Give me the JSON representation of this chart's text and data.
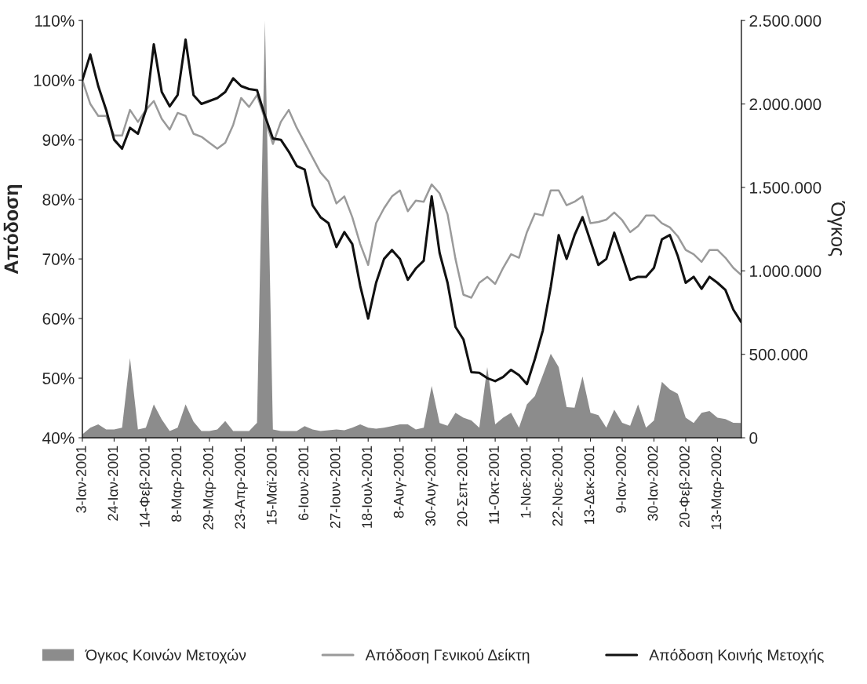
{
  "chart_data": {
    "type": "line",
    "ylabel": "Απόδοση",
    "y2label": "Όγκος",
    "categories": [
      "3-Ιαν-2001",
      null,
      null,
      null,
      "24-Ιαν-2001",
      null,
      null,
      null,
      "14-Φεβ-2001",
      null,
      null,
      null,
      "8-Μαρ-2001",
      null,
      null,
      null,
      "29-Μαρ-2001",
      null,
      null,
      null,
      "23-Απρ-2001",
      null,
      null,
      null,
      "15-Μαϊ-2001",
      null,
      null,
      null,
      "6-Ιουν-2001",
      null,
      null,
      null,
      "27-Ιουν-2001",
      null,
      null,
      null,
      "18-Ιουλ-2001",
      null,
      null,
      null,
      "8-Αυγ-2001",
      null,
      null,
      null,
      "30-Αυγ-2001",
      null,
      null,
      null,
      "20-Σεπ-2001",
      null,
      null,
      null,
      "11-Οκτ-2001",
      null,
      null,
      null,
      "1-Νοε-2001",
      null,
      null,
      null,
      "22-Νοε-2001",
      null,
      null,
      null,
      "13-Δεκ-2001",
      null,
      null,
      null,
      "9-Ιαν-2002",
      null,
      null,
      null,
      "30-Ιαν-2002",
      null,
      null,
      null,
      "20-Φεβ-2002",
      null,
      null,
      null,
      "13-Μαρ-2002",
      null,
      null,
      null
    ],
    "series": [
      {
        "name": "Όγκος Κοινών Μετοχών",
        "type": "area",
        "axis": "y2",
        "color": "#8c8c8c",
        "values": [
          20000,
          60000,
          80000,
          50000,
          50000,
          60000,
          477000,
          50000,
          60000,
          200000,
          110000,
          40000,
          60000,
          200000,
          97000,
          40000,
          40000,
          50000,
          100000,
          40000,
          40000,
          40000,
          90000,
          2500000,
          50000,
          40000,
          40000,
          40000,
          70000,
          50000,
          40000,
          45000,
          50000,
          45000,
          60000,
          80000,
          60000,
          55000,
          60000,
          70000,
          80000,
          80000,
          50000,
          60000,
          311000,
          88000,
          72000,
          150000,
          120000,
          104000,
          60000,
          423000,
          80000,
          120000,
          150000,
          60000,
          200000,
          250000,
          375000,
          503000,
          423000,
          184000,
          180000,
          367000,
          150000,
          136000,
          60000,
          168000,
          90000,
          72000,
          200000,
          60000,
          104000,
          335000,
          290000,
          264000,
          120000,
          88000,
          150000,
          160000,
          120000,
          112000,
          90000,
          88000
        ]
      },
      {
        "name": "Απόδοση Γενικού Δείκτη",
        "color": "#9a9a9a",
        "values": [
          100,
          96,
          94,
          94,
          90.7,
          90.7,
          95,
          93,
          95,
          96.5,
          93.5,
          91.7,
          94.5,
          94,
          91,
          90.5,
          89.5,
          88.5,
          89.5,
          92.5,
          97,
          95.5,
          97.5,
          93.5,
          89.3,
          93,
          95,
          92,
          89.5,
          87,
          84.5,
          83,
          79.3,
          80.5,
          77,
          72.5,
          69,
          76,
          78.5,
          80.5,
          81.5,
          78,
          79.8,
          79.6,
          82.5,
          81,
          77.5,
          70,
          64,
          63.5,
          66,
          67,
          65.8,
          68.5,
          70.8,
          70.2,
          74.5,
          77.6,
          77.3,
          81.5,
          81.5,
          79,
          79.6,
          80.5,
          76,
          76.2,
          76.6,
          77.8,
          76.5,
          74.5,
          75.5,
          77.3,
          77.3,
          76,
          75.3,
          73.8,
          71.5,
          70.8,
          69.5,
          71.5,
          71.5,
          70.2,
          68.5,
          67.3
        ]
      },
      {
        "name": "Απόδοση Κοινής Μετοχής",
        "color": "#111111",
        "values": [
          100,
          104.3,
          99,
          95,
          90,
          88.5,
          92,
          91,
          95,
          106,
          98,
          95.6,
          97.5,
          106.8,
          97.5,
          96,
          96.5,
          97,
          98,
          100.3,
          99,
          98.5,
          98.3,
          94,
          90.2,
          90,
          88,
          85.6,
          85,
          79,
          77,
          76,
          72,
          74.5,
          72.5,
          65.5,
          60,
          66,
          70,
          71.5,
          70,
          66.5,
          68.4,
          69.7,
          80.5,
          71,
          66,
          58.6,
          56.5,
          51,
          50.9,
          50,
          49.5,
          50.2,
          51.4,
          50.5,
          49,
          53.2,
          58,
          65.3,
          74,
          70,
          74,
          77,
          73,
          69,
          70,
          74.4,
          70.5,
          66.5,
          67,
          67,
          68.5,
          73.3,
          74,
          70.5,
          66,
          67,
          65,
          67,
          66,
          64.8,
          61.5,
          59.4
        ]
      }
    ],
    "ylim": [
      40,
      110
    ],
    "yticks": [
      {
        "value": 40,
        "label": "40%"
      },
      {
        "value": 50,
        "label": "50%"
      },
      {
        "value": 60,
        "label": "60%"
      },
      {
        "value": 70,
        "label": "70%"
      },
      {
        "value": 80,
        "label": "80%"
      },
      {
        "value": 90,
        "label": "90%"
      },
      {
        "value": 100,
        "label": "100%"
      },
      {
        "value": 110,
        "label": "110%"
      }
    ],
    "y2lim": [
      0,
      2500000
    ],
    "y2ticks": [
      0,
      {
        "value": 500000,
        "label": "500.000"
      },
      {
        "value": 1000000,
        "label": "1.000.000"
      },
      {
        "value": 1500000,
        "label": "1.500.000"
      },
      {
        "value": 2000000,
        "label": "2.000.000"
      },
      {
        "value": 2500000,
        "label": "2.500.000"
      }
    ],
    "legend": "bottom",
    "grid": false
  }
}
